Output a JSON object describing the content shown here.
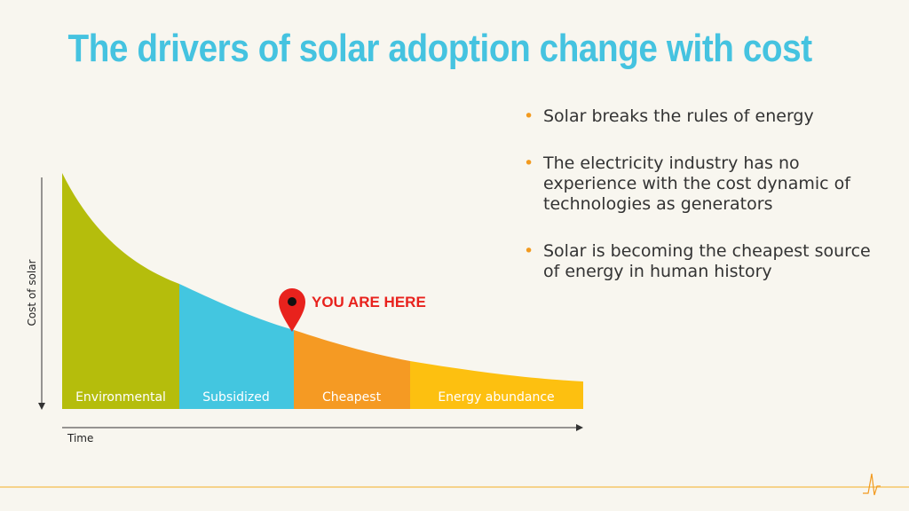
{
  "slide": {
    "title": "The drivers of solar adoption change with cost"
  },
  "diagram": {
    "y_axis_label": "Cost of solar",
    "x_axis_label": "Time",
    "marker_label": "YOU ARE HERE",
    "phases": [
      {
        "label": "Environmental",
        "color": "#b5bd0c"
      },
      {
        "label": "Subsidized",
        "color": "#43c6e0"
      },
      {
        "label": "Cheapest",
        "color": "#f59a23"
      },
      {
        "label": "Energy abundance",
        "color": "#fdc010"
      }
    ],
    "marker_color": "#e8221d",
    "marker_text_color": "#e8221d"
  },
  "bullets": [
    "Solar breaks the rules of energy",
    "The electricity industry has no experience with the cost dynamic of technologies as generators",
    "Solar is becoming the cheapest source of energy in human history"
  ],
  "colors": {
    "title": "#45c3e0",
    "bullet": "#f29a1f",
    "footer_line": "#f6d28a"
  }
}
